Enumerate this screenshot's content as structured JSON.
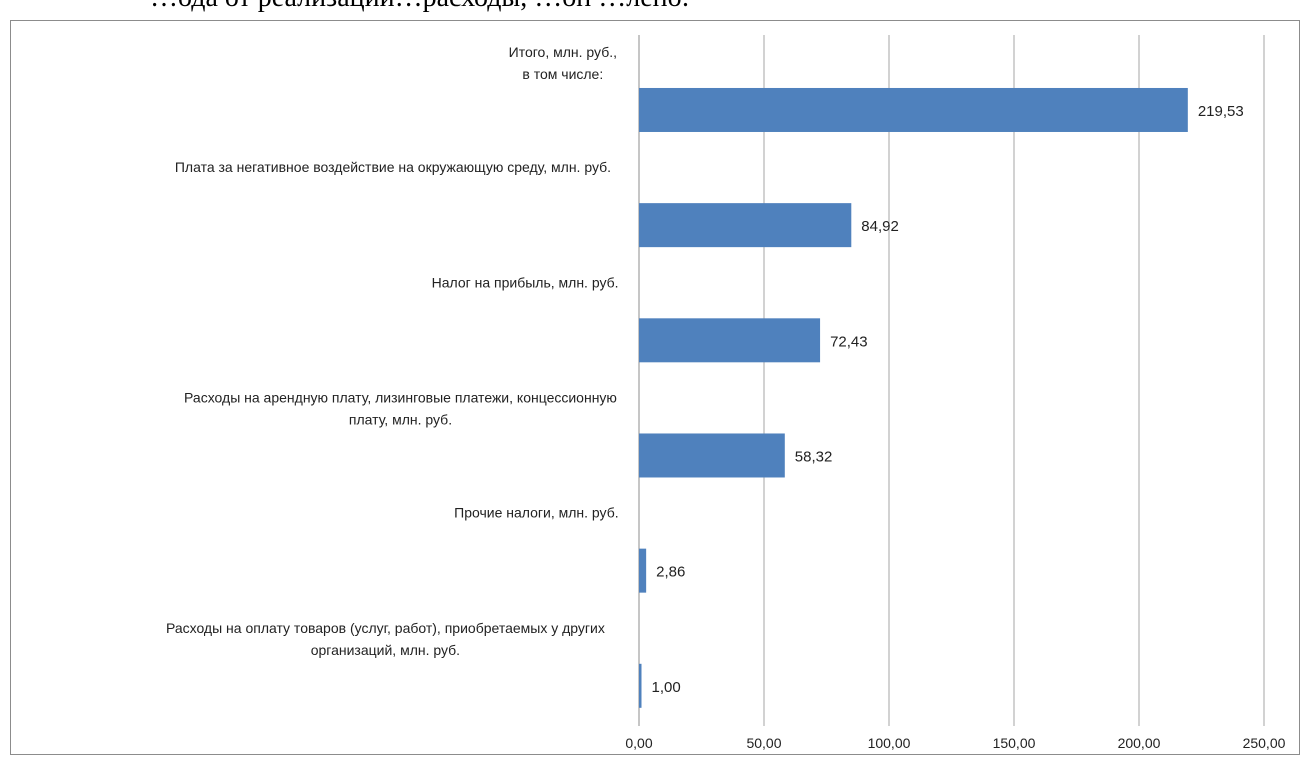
{
  "header": {
    "partial_text": "…ода от реализации…расходы, …он …лено:"
  },
  "chart_data": {
    "type": "bar",
    "orientation": "horizontal",
    "categories": [
      [
        "Итого, млн. руб.,",
        "в том числе:"
      ],
      [
        "Плата за негативное воздействие на окружающую среду, млн. руб."
      ],
      [
        "Налог на прибыль, млн. руб."
      ],
      [
        "Расходы на арендную плату, лизинговые платежи, концессионную",
        "плату, млн. руб."
      ],
      [
        "Прочие налоги, млн. руб."
      ],
      [
        "Расходы на оплату товаров (услуг, работ), приобретаемых у других",
        "организаций, млн. руб."
      ]
    ],
    "values": [
      219.53,
      84.92,
      72.43,
      58.32,
      2.86,
      1.0
    ],
    "value_labels": [
      "219,53",
      "84,92",
      "72,43",
      "58,32",
      "2,86",
      "1,00"
    ],
    "xlim": [
      0,
      250
    ],
    "ticks": [
      0,
      50,
      100,
      150,
      200,
      250
    ],
    "tick_labels": [
      "0,00",
      "50,00",
      "100,00",
      "150,00",
      "200,00",
      "250,00"
    ],
    "grid": true,
    "legend": "none",
    "title": "",
    "xlabel": "",
    "ylabel": "",
    "bar_color": "#4f81bd",
    "grid_color": "#a6a6a6"
  }
}
